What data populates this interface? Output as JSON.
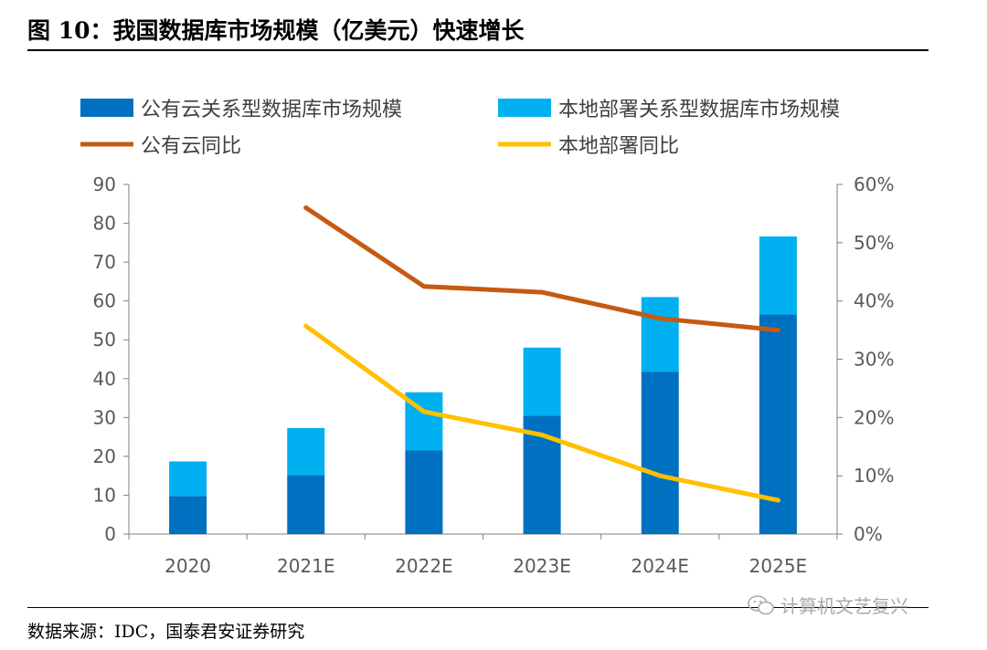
{
  "title": "图 10：我国数据库市场规模（亿美元）快速增长",
  "source": "数据来源：IDC，国泰君安证券研究",
  "watermark": {
    "text": "计算机文艺复兴",
    "icon": "wechat-icon"
  },
  "colors": {
    "public_bar": "#0070C0",
    "local_bar": "#00B0F0",
    "public_line": "#C55A11",
    "local_line": "#FFC000",
    "axis": "#808080"
  },
  "chart_data": {
    "type": "bar",
    "stacked": true,
    "categories": [
      "2020",
      "2021E",
      "2022E",
      "2023E",
      "2024E",
      "2025E"
    ],
    "series": [
      {
        "name": "公有云关系型数据库市场规模",
        "type": "bar",
        "axis": "left",
        "values": [
          9.8,
          15.2,
          21.5,
          30.5,
          41.8,
          56.5
        ]
      },
      {
        "name": "本地部署关系型数据库市场规模",
        "type": "bar",
        "axis": "left",
        "values": [
          8.9,
          12.1,
          15.0,
          17.5,
          19.2,
          20.1
        ]
      },
      {
        "name": "公有云同比",
        "type": "line",
        "axis": "right",
        "values": [
          null,
          0.56,
          0.425,
          0.415,
          0.37,
          0.35
        ]
      },
      {
        "name": "本地部署同比",
        "type": "line",
        "axis": "right",
        "values": [
          null,
          0.357,
          0.21,
          0.17,
          0.1,
          0.058
        ]
      }
    ],
    "y_left": {
      "min": 0,
      "max": 90,
      "ticks": [
        "0",
        "10",
        "20",
        "30",
        "40",
        "50",
        "60",
        "70",
        "80",
        "90"
      ]
    },
    "y_right": {
      "min": 0,
      "max": 0.6,
      "ticks": [
        "0%",
        "10%",
        "20%",
        "30%",
        "40%",
        "50%",
        "60%"
      ]
    },
    "legend_position": "top",
    "grid": false
  }
}
